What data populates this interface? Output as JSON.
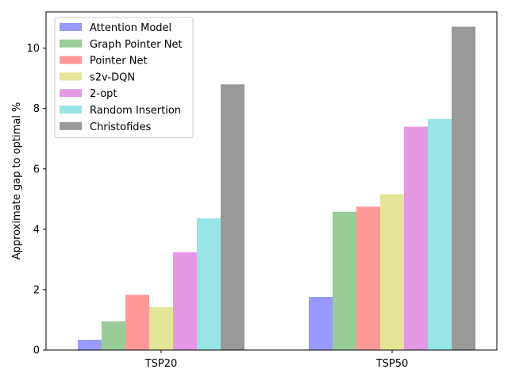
{
  "chart_data": {
    "type": "bar",
    "title": "",
    "xlabel": "",
    "ylabel": "Approximate gap to optimal %",
    "categories": [
      "TSP20",
      "TSP50"
    ],
    "ylim": [
      0,
      11.2
    ],
    "yticks": [
      0,
      2,
      4,
      6,
      8,
      10
    ],
    "grid": false,
    "legend_position": "top-left",
    "series": [
      {
        "name": "Attention Model",
        "color": "#9999ff",
        "values": [
          0.34,
          1.76
        ]
      },
      {
        "name": "Graph Pointer Net",
        "color": "#99cc99",
        "values": [
          0.95,
          4.58
        ]
      },
      {
        "name": "Pointer Net",
        "color": "#ff9999",
        "values": [
          1.83,
          4.75
        ]
      },
      {
        "name": "s2v-DQN",
        "color": "#e5e599",
        "values": [
          1.42,
          5.16
        ]
      },
      {
        "name": "2-opt",
        "color": "#e599e5",
        "values": [
          3.24,
          7.4
        ]
      },
      {
        "name": "Random Insertion",
        "color": "#99e5e5",
        "values": [
          4.36,
          7.65
        ]
      },
      {
        "name": "Christofides",
        "color": "#999999",
        "values": [
          8.8,
          10.71
        ]
      }
    ]
  }
}
